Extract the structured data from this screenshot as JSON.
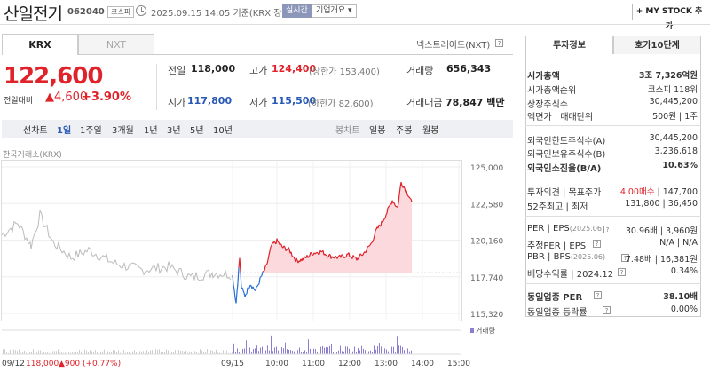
{
  "header": {
    "name": "산일전기",
    "code": "062040",
    "market": "코스피",
    "datetime": "2025.09.15 14:05",
    "basis": "기준(KRX 장중)",
    "realtime": "실시간",
    "company_info": "기업개요 ▾",
    "mystock": "+ MY STOCK 추가"
  },
  "tabs": {
    "krx": "KRX",
    "nxt": "NXT"
  },
  "nextrade": "넥스트레이드(NXT)",
  "help": "?",
  "price": {
    "current": "122,600",
    "change_label": "전일대비",
    "change": "▲4,600",
    "change_pct": "+3.90%"
  },
  "summary": {
    "prev_label": "전일",
    "prev": "118,000",
    "high_label": "고가",
    "high": "124,400",
    "upper_limit": "(상한가 153,400)",
    "volume_label": "거래량",
    "volume": "656,343",
    "open_label": "시가",
    "open": "117,800",
    "low_label": "저가",
    "low": "115,500",
    "lower_limit": "(하한가 82,600)",
    "amount_label": "거래대금",
    "amount": "78,847",
    "amount_unit": "백만"
  },
  "periods": {
    "line": "선차트",
    "day1": "1일",
    "week1": "1주일",
    "month3": "3개월",
    "year1": "1년",
    "year3": "3년",
    "year5": "5년",
    "year10": "10년",
    "candle": "봉차트",
    "daily": "일봉",
    "weekly": "주봉",
    "monthly": "월봉"
  },
  "chart_source": "한국거래소(KRX)",
  "chart_data": {
    "type": "line",
    "y_ticks": [
      "125,000",
      "122,580",
      "120,160",
      "117,740",
      "115,320"
    ],
    "x_ticks": [
      "09/15",
      "10:00",
      "11:00",
      "12:00",
      "13:00",
      "14:00",
      "15:00"
    ],
    "prev_close": 118000,
    "volume_label": "거래량",
    "bottom_left": "09/12",
    "bottom_prev_close": "118,000",
    "bottom_prev_change": "▲900 (+0.77%)",
    "colors": {
      "up": "#e0222a",
      "down": "#2a6fd6",
      "history": "#bbbbbb",
      "fill": "#fbd9dc"
    }
  },
  "invest": {
    "tab1": "투자정보",
    "tab2": "호가10단계",
    "mcap_label": "시가총액",
    "mcap": "3조 7,326억원",
    "rank_label": "시가총액순위",
    "rank": "코스피 118위",
    "shares_label": "상장주식수",
    "shares": "30,445,200",
    "face_label": "액면가 | 매매단위",
    "face": "500원 | 1주",
    "foreign_limit_label": "외국인한도주식수(A)",
    "foreign_limit": "30,445,200",
    "foreign_hold_label": "외국인보유주식수(B)",
    "foreign_hold": "3,236,618",
    "foreign_ratio_label": "외국인소진율(B/A)",
    "foreign_ratio": "10.63%",
    "opinion_label": "투자의견 | 목표주가",
    "opinion": "4.00매수",
    "target": "147,700",
    "w52_label": "52주최고 | 최저",
    "w52": "131,800 | 36,450",
    "per_label": "PER | EPS",
    "per_date": "(2025.06)",
    "per": "30.96배 | 3,960원",
    "est_label": "추정PER | EPS",
    "est": "N/A | N/A",
    "pbr_label": "PBR | BPS",
    "pbr_date": "(2025.06)",
    "pbr": "7.48배 | 16,381원",
    "div_label": "배당수익률 | 2024.12",
    "div": "0.34%",
    "ind_per_label": "동일업종 PER",
    "ind_per": "38.10배",
    "ind_rate_label": "동일업종 등락률",
    "ind_rate": "0.00%"
  }
}
